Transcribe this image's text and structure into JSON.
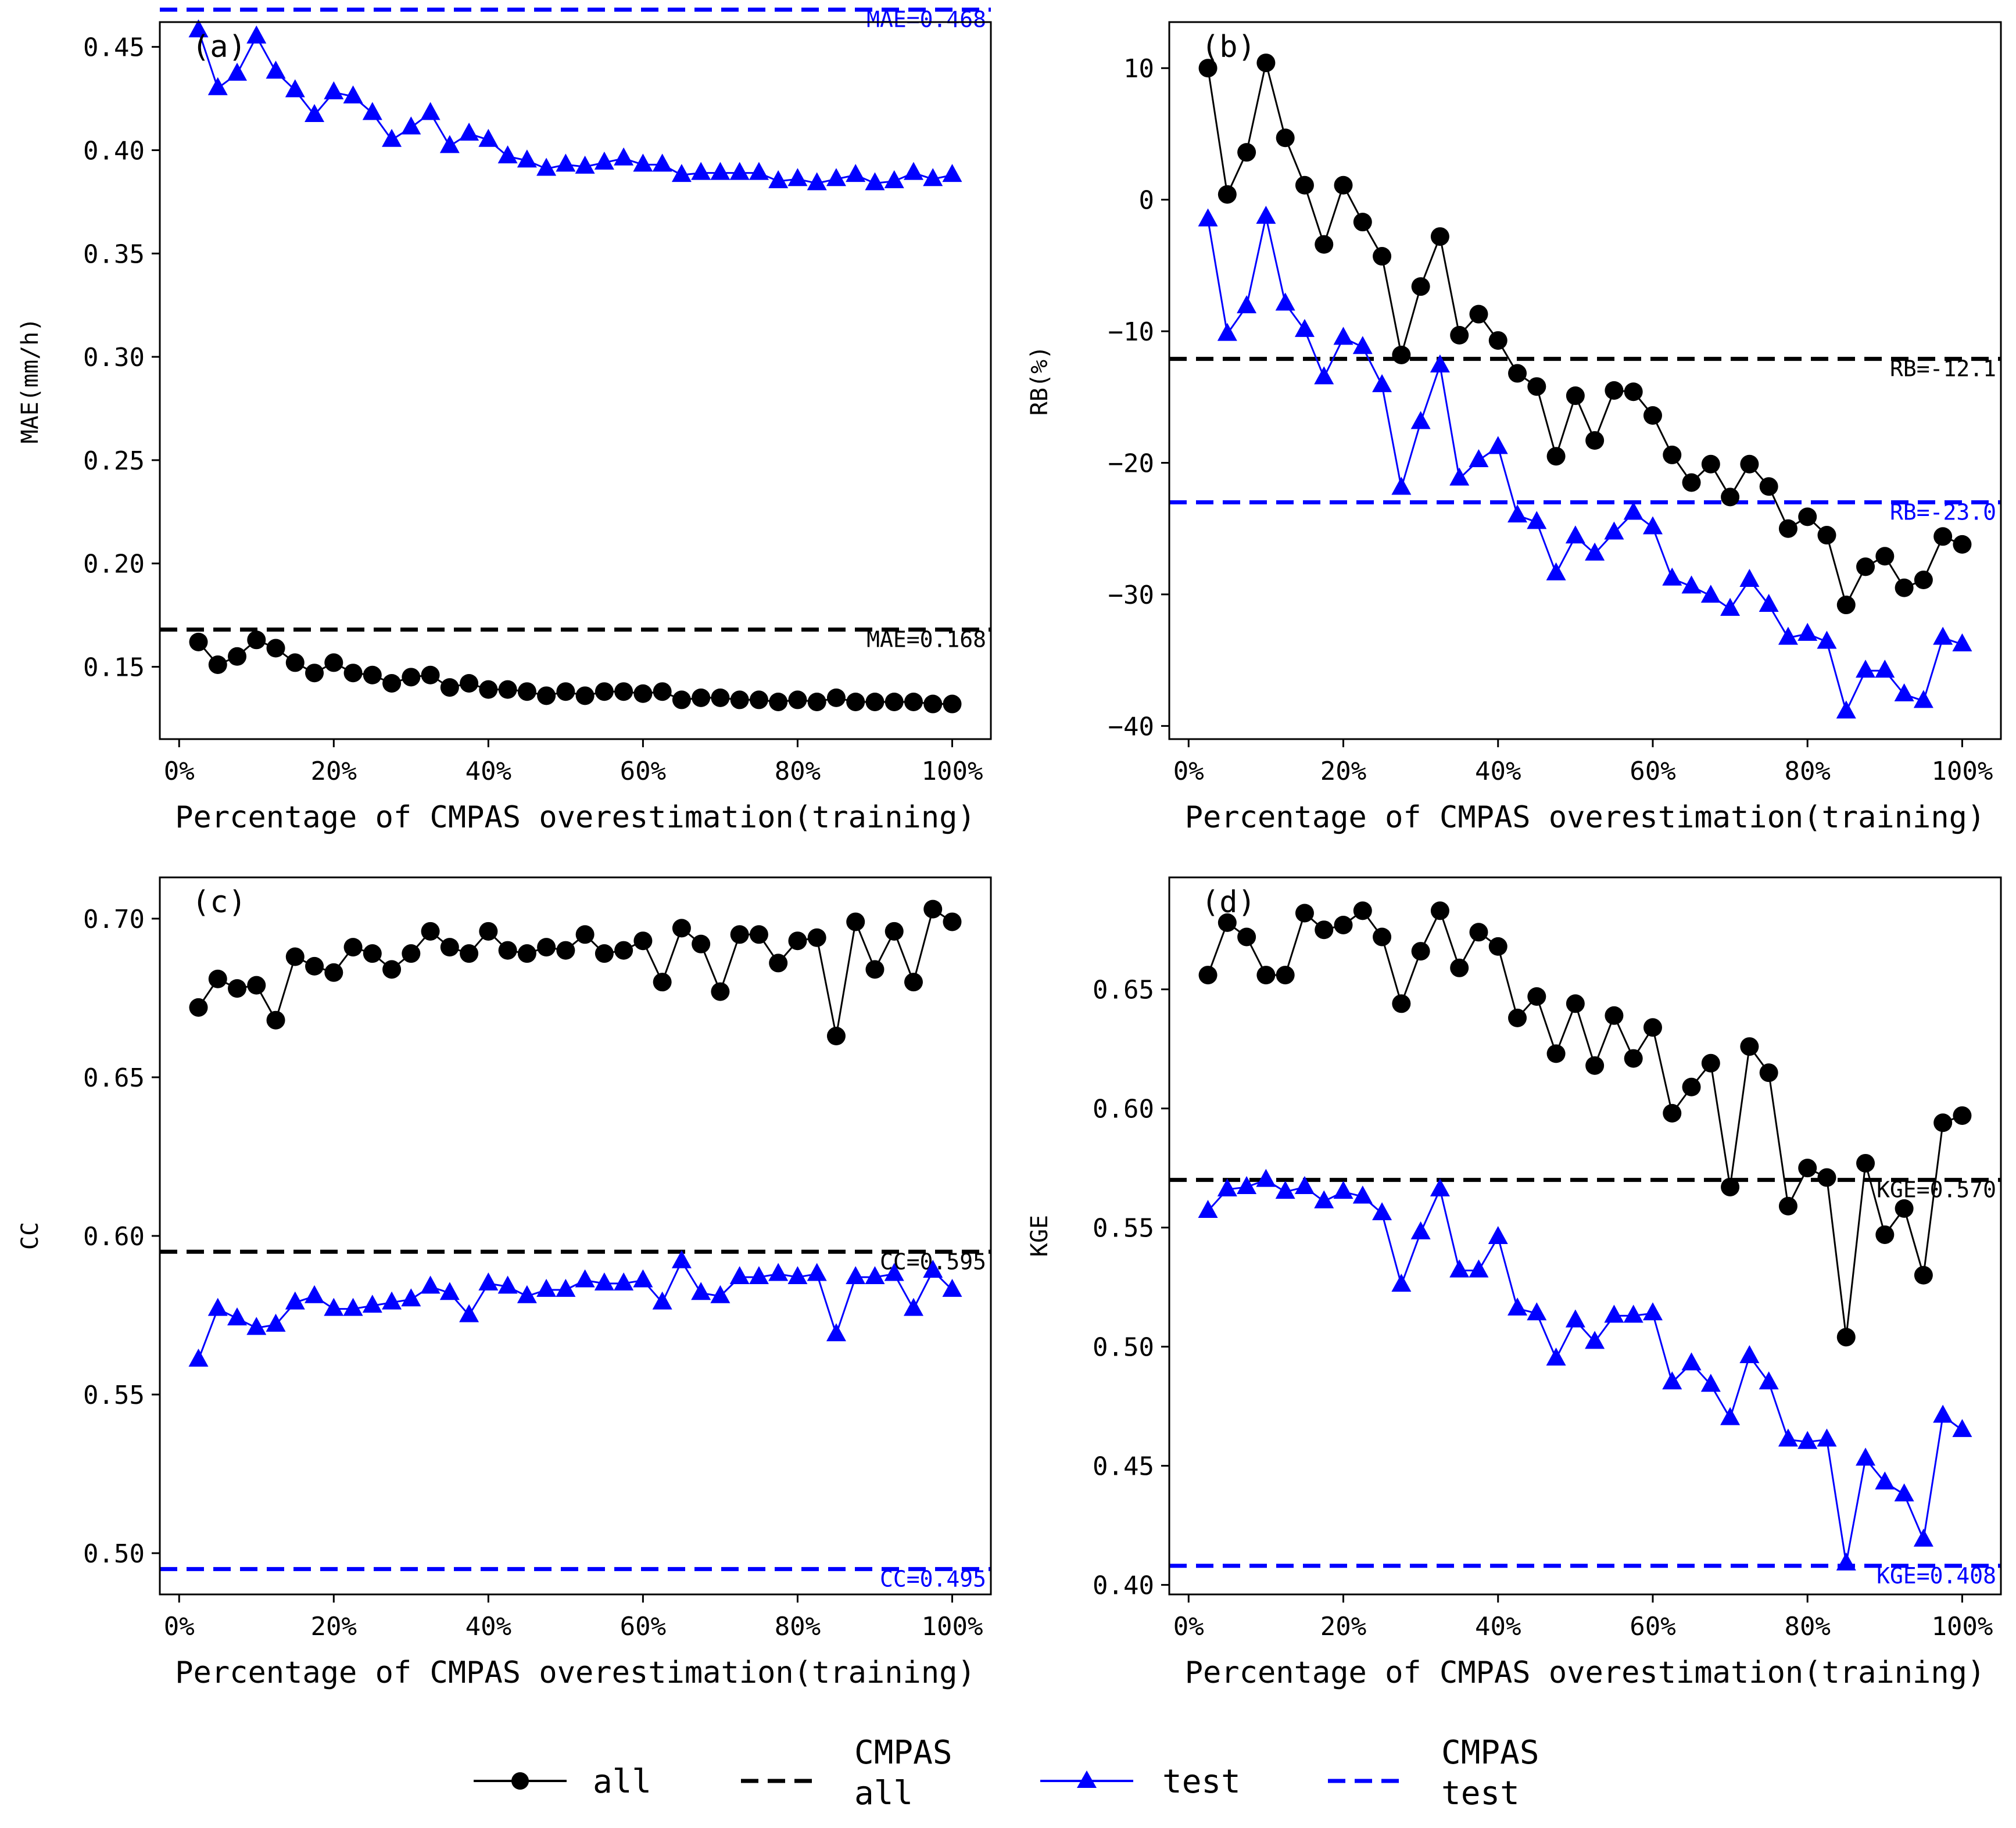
{
  "colors": {
    "all": "#000000",
    "test": "#0000ff"
  },
  "chart_data": [
    {
      "type": "line",
      "panel": "(a)",
      "xlabel": "Percentage of CMPAS overestimation(training)",
      "ylabel": "MAE(mm/h)",
      "xlim": [
        -2.5,
        105
      ],
      "ylim": [
        0.115,
        0.462
      ],
      "xticks": [
        0,
        20,
        40,
        60,
        80,
        100
      ],
      "xtick_labels": [
        "0%",
        "20%",
        "40%",
        "60%",
        "80%",
        "100%"
      ],
      "yticks": [
        0.15,
        0.2,
        0.25,
        0.3,
        0.35,
        0.4,
        0.45
      ],
      "ytick_labels": [
        "0.15",
        "0.20",
        "0.25",
        "0.30",
        "0.35",
        "0.40",
        "0.45"
      ],
      "x": [
        2.5,
        5,
        7.5,
        10,
        12.5,
        15,
        17.5,
        20,
        22.5,
        25,
        27.5,
        30,
        32.5,
        35,
        37.5,
        40,
        42.5,
        45,
        47.5,
        50,
        52.5,
        55,
        57.5,
        60,
        62.5,
        65,
        67.5,
        70,
        72.5,
        75,
        77.5,
        80,
        82.5,
        85,
        87.5,
        90,
        92.5,
        95,
        97.5,
        100
      ],
      "series": [
        {
          "name": "all",
          "style": "circle",
          "values": [
            0.162,
            0.151,
            0.155,
            0.163,
            0.159,
            0.152,
            0.147,
            0.152,
            0.147,
            0.146,
            0.142,
            0.145,
            0.146,
            0.14,
            0.142,
            0.139,
            0.139,
            0.138,
            0.136,
            0.138,
            0.136,
            0.138,
            0.138,
            0.137,
            0.138,
            0.134,
            0.135,
            0.135,
            0.134,
            0.134,
            0.133,
            0.134,
            0.133,
            0.135,
            0.133,
            0.133,
            0.133,
            0.133,
            0.132,
            0.132
          ]
        },
        {
          "name": "test",
          "style": "triangle",
          "values": [
            0.458,
            0.43,
            0.437,
            0.455,
            0.438,
            0.429,
            0.417,
            0.428,
            0.426,
            0.418,
            0.405,
            0.411,
            0.418,
            0.402,
            0.408,
            0.405,
            0.397,
            0.395,
            0.391,
            0.393,
            0.392,
            0.394,
            0.396,
            0.393,
            0.393,
            0.388,
            0.389,
            0.389,
            0.389,
            0.389,
            0.385,
            0.386,
            0.384,
            0.386,
            0.388,
            0.384,
            0.385,
            0.389,
            0.386,
            0.388
          ]
        }
      ],
      "reference_lines": [
        {
          "name": "CMPAS all",
          "value": 0.168,
          "label": "MAE=0.168",
          "color": "#000000"
        },
        {
          "name": "CMPAS test",
          "value": 0.468,
          "label": "MAE=0.468",
          "color": "#0000ff"
        }
      ]
    },
    {
      "type": "line",
      "panel": "(b)",
      "xlabel": "Percentage of CMPAS overestimation(training)",
      "ylabel": "RB(%)",
      "xlim": [
        -2.5,
        105
      ],
      "ylim": [
        -41,
        13.5
      ],
      "xticks": [
        0,
        20,
        40,
        60,
        80,
        100
      ],
      "xtick_labels": [
        "0%",
        "20%",
        "40%",
        "60%",
        "80%",
        "100%"
      ],
      "yticks": [
        -40,
        -30,
        -20,
        -10,
        0,
        10
      ],
      "ytick_labels": [
        "−40",
        "−30",
        "−20",
        "−10",
        "0",
        "10"
      ],
      "x": [
        2.5,
        5,
        7.5,
        10,
        12.5,
        15,
        17.5,
        20,
        22.5,
        25,
        27.5,
        30,
        32.5,
        35,
        37.5,
        40,
        42.5,
        45,
        47.5,
        50,
        52.5,
        55,
        57.5,
        60,
        62.5,
        65,
        67.5,
        70,
        72.5,
        75,
        77.5,
        80,
        82.5,
        85,
        87.5,
        90,
        92.5,
        95,
        97.5,
        100
      ],
      "series": [
        {
          "name": "all",
          "style": "circle",
          "values": [
            10.0,
            0.4,
            3.6,
            10.4,
            4.7,
            1.1,
            -3.4,
            1.1,
            -1.7,
            -4.3,
            -11.8,
            -6.6,
            -2.8,
            -10.3,
            -8.7,
            -10.7,
            -13.2,
            -14.2,
            -19.5,
            -14.9,
            -18.3,
            -14.5,
            -14.6,
            -16.4,
            -19.4,
            -21.5,
            -20.1,
            -22.6,
            -20.1,
            -21.8,
            -25.0,
            -24.1,
            -25.5,
            -30.8,
            -27.9,
            -27.1,
            -29.5,
            -28.9,
            -25.6,
            -26.2
          ]
        },
        {
          "name": "test",
          "style": "triangle",
          "values": [
            -1.5,
            -10.2,
            -8.1,
            -1.3,
            -7.9,
            -9.9,
            -13.5,
            -10.5,
            -11.2,
            -14.1,
            -21.9,
            -16.9,
            -12.6,
            -21.2,
            -19.8,
            -18.8,
            -24.0,
            -24.5,
            -28.4,
            -25.6,
            -26.9,
            -25.3,
            -23.8,
            -24.9,
            -28.8,
            -29.4,
            -30.1,
            -31.1,
            -28.9,
            -30.8,
            -33.3,
            -33.0,
            -33.6,
            -38.9,
            -35.8,
            -35.8,
            -37.6,
            -38.1,
            -33.3,
            -33.8
          ]
        }
      ],
      "reference_lines": [
        {
          "name": "CMPAS all",
          "value": -12.1,
          "label": "RB=-12.1",
          "color": "#000000"
        },
        {
          "name": "CMPAS test",
          "value": -23.0,
          "label": "RB=-23.0",
          "color": "#0000ff"
        }
      ]
    },
    {
      "type": "line",
      "panel": "(c)",
      "xlabel": "Percentage of CMPAS overestimation(training)",
      "ylabel": "CC",
      "xlim": [
        -2.5,
        105
      ],
      "ylim": [
        0.487,
        0.713
      ],
      "xticks": [
        0,
        20,
        40,
        60,
        80,
        100
      ],
      "xtick_labels": [
        "0%",
        "20%",
        "40%",
        "60%",
        "80%",
        "100%"
      ],
      "yticks": [
        0.5,
        0.55,
        0.6,
        0.65,
        0.7
      ],
      "ytick_labels": [
        "0.50",
        "0.55",
        "0.60",
        "0.65",
        "0.70"
      ],
      "x": [
        2.5,
        5,
        7.5,
        10,
        12.5,
        15,
        17.5,
        20,
        22.5,
        25,
        27.5,
        30,
        32.5,
        35,
        37.5,
        40,
        42.5,
        45,
        47.5,
        50,
        52.5,
        55,
        57.5,
        60,
        62.5,
        65,
        67.5,
        70,
        72.5,
        75,
        77.5,
        80,
        82.5,
        85,
        87.5,
        90,
        92.5,
        95,
        97.5,
        100
      ],
      "series": [
        {
          "name": "all",
          "style": "circle",
          "values": [
            0.672,
            0.681,
            0.678,
            0.679,
            0.668,
            0.688,
            0.685,
            0.683,
            0.691,
            0.689,
            0.684,
            0.689,
            0.696,
            0.691,
            0.689,
            0.696,
            0.69,
            0.689,
            0.691,
            0.69,
            0.695,
            0.689,
            0.69,
            0.693,
            0.68,
            0.697,
            0.692,
            0.677,
            0.695,
            0.695,
            0.686,
            0.693,
            0.694,
            0.663,
            0.699,
            0.684,
            0.696,
            0.68,
            0.703,
            0.699
          ]
        },
        {
          "name": "test",
          "style": "triangle",
          "values": [
            0.561,
            0.577,
            0.574,
            0.571,
            0.572,
            0.579,
            0.581,
            0.577,
            0.577,
            0.578,
            0.579,
            0.58,
            0.584,
            0.582,
            0.575,
            0.585,
            0.584,
            0.581,
            0.583,
            0.583,
            0.586,
            0.585,
            0.585,
            0.586,
            0.579,
            0.592,
            0.582,
            0.581,
            0.587,
            0.587,
            0.588,
            0.587,
            0.588,
            0.569,
            0.587,
            0.587,
            0.588,
            0.577,
            0.589,
            0.583
          ]
        }
      ],
      "reference_lines": [
        {
          "name": "CMPAS all",
          "value": 0.595,
          "label": "CC=0.595",
          "color": "#000000"
        },
        {
          "name": "CMPAS test",
          "value": 0.495,
          "label": "CC=0.495",
          "color": "#0000ff"
        }
      ]
    },
    {
      "type": "line",
      "panel": "(d)",
      "xlabel": "Percentage of CMPAS overestimation(training)",
      "ylabel": "KGE",
      "xlim": [
        -2.5,
        105
      ],
      "ylim": [
        0.396,
        0.697
      ],
      "xticks": [
        0,
        20,
        40,
        60,
        80,
        100
      ],
      "xtick_labels": [
        "0%",
        "20%",
        "40%",
        "60%",
        "80%",
        "100%"
      ],
      "yticks": [
        0.4,
        0.45,
        0.5,
        0.55,
        0.6,
        0.65
      ],
      "ytick_labels": [
        "0.40",
        "0.45",
        "0.50",
        "0.55",
        "0.60",
        "0.65"
      ],
      "x": [
        2.5,
        5,
        7.5,
        10,
        12.5,
        15,
        17.5,
        20,
        22.5,
        25,
        27.5,
        30,
        32.5,
        35,
        37.5,
        40,
        42.5,
        45,
        47.5,
        50,
        52.5,
        55,
        57.5,
        60,
        62.5,
        65,
        67.5,
        70,
        72.5,
        75,
        77.5,
        80,
        82.5,
        85,
        87.5,
        90,
        92.5,
        95,
        97.5,
        100
      ],
      "series": [
        {
          "name": "all",
          "style": "circle",
          "values": [
            0.656,
            0.678,
            0.672,
            0.656,
            0.656,
            0.682,
            0.675,
            0.677,
            0.683,
            0.672,
            0.644,
            0.666,
            0.683,
            0.659,
            0.674,
            0.668,
            0.638,
            0.647,
            0.623,
            0.644,
            0.618,
            0.639,
            0.621,
            0.634,
            0.598,
            0.609,
            0.619,
            0.567,
            0.626,
            0.615,
            0.559,
            0.575,
            0.571,
            0.504,
            0.577,
            0.547,
            0.558,
            0.53,
            0.594,
            0.597
          ]
        },
        {
          "name": "test",
          "style": "triangle",
          "values": [
            0.557,
            0.566,
            0.567,
            0.57,
            0.565,
            0.567,
            0.561,
            0.565,
            0.563,
            0.556,
            0.526,
            0.548,
            0.566,
            0.532,
            0.532,
            0.546,
            0.516,
            0.514,
            0.495,
            0.511,
            0.502,
            0.513,
            0.513,
            0.514,
            0.485,
            0.493,
            0.484,
            0.47,
            0.496,
            0.485,
            0.461,
            0.46,
            0.461,
            0.409,
            0.453,
            0.443,
            0.438,
            0.419,
            0.471,
            0.465
          ]
        }
      ],
      "reference_lines": [
        {
          "name": "CMPAS all",
          "value": 0.57,
          "label": "KGE=0.570",
          "color": "#000000"
        },
        {
          "name": "CMPAS test",
          "value": 0.408,
          "label": "KGE=0.408",
          "color": "#0000ff"
        }
      ]
    }
  ],
  "legend": [
    {
      "key": "all",
      "label": "all",
      "style": "line-circle",
      "color": "#000000"
    },
    {
      "key": "cmpas_all",
      "label_line1": "CMPAS",
      "label_line2": "all",
      "style": "dashed",
      "color": "#000000"
    },
    {
      "key": "test",
      "label": "test",
      "style": "line-triangle",
      "color": "#0000ff"
    },
    {
      "key": "cmpas_test",
      "label_line1": "CMPAS",
      "label_line2": "test",
      "style": "dashed",
      "color": "#0000ff"
    }
  ]
}
